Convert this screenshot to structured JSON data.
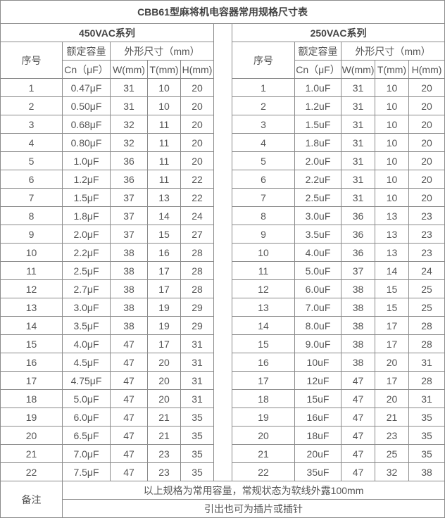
{
  "title": "CBB61型麻将机电容器常用规格尺寸表",
  "left": {
    "series": "450VAC系列",
    "headers": {
      "index": "序号",
      "capacity": "额定容量",
      "dimensions": "外形尺寸（mm）",
      "cn": "Cn（μF）",
      "w": "W(mm)",
      "t": "T(mm)",
      "h": "H(mm)"
    },
    "rows": [
      [
        "1",
        "0.47μF",
        "31",
        "10",
        "20"
      ],
      [
        "2",
        "0.50μF",
        "31",
        "10",
        "20"
      ],
      [
        "3",
        "0.68μF",
        "32",
        "11",
        "20"
      ],
      [
        "4",
        "0.80μF",
        "32",
        "11",
        "20"
      ],
      [
        "5",
        "1.0μF",
        "36",
        "11",
        "20"
      ],
      [
        "6",
        "1.2μF",
        "36",
        "11",
        "22"
      ],
      [
        "7",
        "1.5μF",
        "37",
        "13",
        "22"
      ],
      [
        "8",
        "1.8μF",
        "37",
        "14",
        "24"
      ],
      [
        "9",
        "2.0μF",
        "37",
        "15",
        "27"
      ],
      [
        "10",
        "2.2μF",
        "38",
        "16",
        "28"
      ],
      [
        "11",
        "2.5μF",
        "38",
        "17",
        "28"
      ],
      [
        "12",
        "2.7μF",
        "38",
        "17",
        "28"
      ],
      [
        "13",
        "3.0μF",
        "38",
        "19",
        "29"
      ],
      [
        "14",
        "3.5μF",
        "38",
        "19",
        "29"
      ],
      [
        "15",
        "4.0μF",
        "47",
        "17",
        "31"
      ],
      [
        "16",
        "4.5μF",
        "47",
        "20",
        "31"
      ],
      [
        "17",
        "4.75μF",
        "47",
        "20",
        "31"
      ],
      [
        "18",
        "5.0μF",
        "47",
        "20",
        "31"
      ],
      [
        "19",
        "6.0μF",
        "47",
        "21",
        "35"
      ],
      [
        "20",
        "6.5μF",
        "47",
        "21",
        "35"
      ],
      [
        "21",
        "7.0μF",
        "47",
        "23",
        "35"
      ],
      [
        "22",
        "7.5μF",
        "47",
        "23",
        "35"
      ]
    ]
  },
  "right": {
    "series": "250VAC系列",
    "headers": {
      "index": "序号",
      "capacity": "额定容量",
      "dimensions": "外形尺寸（mm）",
      "cn": "Cn（μF）",
      "w": "W(mm)",
      "t": "T(mm)",
      "h": "H(mm)"
    },
    "rows": [
      [
        "1",
        "1.0uF",
        "31",
        "10",
        "20"
      ],
      [
        "2",
        "1.2uF",
        "31",
        "10",
        "20"
      ],
      [
        "3",
        "1.5uF",
        "31",
        "10",
        "20"
      ],
      [
        "4",
        "1.8uF",
        "31",
        "10",
        "20"
      ],
      [
        "5",
        "2.0uF",
        "31",
        "10",
        "20"
      ],
      [
        "6",
        "2.2uF",
        "31",
        "10",
        "20"
      ],
      [
        "7",
        "2.5uF",
        "31",
        "10",
        "20"
      ],
      [
        "8",
        "3.0uF",
        "36",
        "13",
        "23"
      ],
      [
        "9",
        "3.5uF",
        "36",
        "13",
        "23"
      ],
      [
        "10",
        "4.0uF",
        "36",
        "13",
        "23"
      ],
      [
        "11",
        "5.0uF",
        "37",
        "14",
        "24"
      ],
      [
        "12",
        "6.0uF",
        "38",
        "15",
        "25"
      ],
      [
        "13",
        "7.0uF",
        "38",
        "15",
        "25"
      ],
      [
        "14",
        "8.0uF",
        "38",
        "17",
        "28"
      ],
      [
        "15",
        "9.0uF",
        "38",
        "17",
        "28"
      ],
      [
        "16",
        "10uF",
        "38",
        "20",
        "31"
      ],
      [
        "17",
        "12uF",
        "47",
        "17",
        "28"
      ],
      [
        "18",
        "15uF",
        "47",
        "20",
        "31"
      ],
      [
        "19",
        "16uF",
        "47",
        "21",
        "35"
      ],
      [
        "20",
        "18uF",
        "47",
        "23",
        "35"
      ],
      [
        "21",
        "20uF",
        "47",
        "25",
        "35"
      ],
      [
        "22",
        "35uF",
        "47",
        "32",
        "38"
      ]
    ]
  },
  "notes": {
    "label": "备注",
    "lines": [
      "以上规格为常用容量，常规状态为软线外露100mm",
      "引出也可为插片或插针"
    ]
  }
}
